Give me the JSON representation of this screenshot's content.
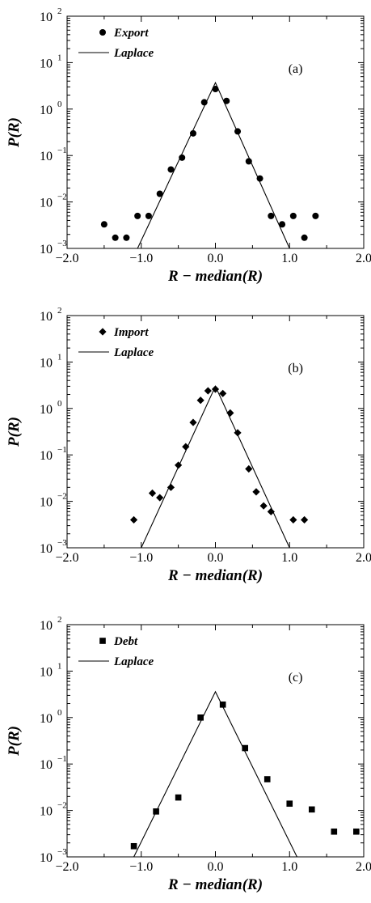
{
  "chart_data": [
    {
      "type": "scatter",
      "panel_label": "(a)",
      "xlabel": "R − median(R)",
      "ylabel": "P(R)",
      "xlim": [
        -2.0,
        2.0
      ],
      "ylim": [
        0.001,
        100
      ],
      "y_scale": "log",
      "x_ticks": [
        "−2.0",
        "−1.0",
        "0.0",
        "1.0",
        "2.0"
      ],
      "y_tick_exponents": [
        "−3",
        "−2",
        "−1",
        "0",
        "1",
        "2"
      ],
      "legend_position": "top-left",
      "series": [
        {
          "name": "Export",
          "marker": "circle",
          "x": [
            -1.5,
            -1.35,
            -1.2,
            -1.05,
            -0.9,
            -0.75,
            -0.6,
            -0.45,
            -0.3,
            -0.15,
            0.0,
            0.15,
            0.3,
            0.45,
            0.6,
            0.75,
            0.9,
            1.05,
            1.2,
            1.35
          ],
          "y": [
            0.0033,
            0.0017,
            0.0017,
            0.005,
            0.005,
            0.015,
            0.05,
            0.09,
            0.3,
            1.4,
            2.7,
            1.5,
            0.33,
            0.075,
            0.032,
            0.005,
            0.0033,
            0.005,
            0.0017,
            0.005
          ]
        },
        {
          "name": "Laplace",
          "marker": "line",
          "x": [
            -1.05,
            0.0,
            1.0
          ],
          "y": [
            0.001,
            3.7,
            0.001
          ]
        }
      ]
    },
    {
      "type": "scatter",
      "panel_label": "(b)",
      "xlabel": "R − median(R)",
      "ylabel": "P(R)",
      "xlim": [
        -2.0,
        2.0
      ],
      "ylim": [
        0.001,
        100
      ],
      "y_scale": "log",
      "x_ticks": [
        "−2.0",
        "−1.0",
        "0.0",
        "1.0",
        "2.0"
      ],
      "y_tick_exponents": [
        "−3",
        "−2",
        "−1",
        "0",
        "1",
        "2"
      ],
      "legend_position": "top-left",
      "series": [
        {
          "name": "Import",
          "marker": "diamond",
          "x": [
            -1.1,
            -0.85,
            -0.75,
            -0.6,
            -0.5,
            -0.4,
            -0.3,
            -0.2,
            -0.1,
            0.0,
            0.1,
            0.2,
            0.3,
            0.45,
            0.55,
            0.65,
            0.75,
            1.05,
            1.2
          ],
          "y": [
            0.004,
            0.015,
            0.012,
            0.02,
            0.06,
            0.15,
            0.5,
            1.5,
            2.4,
            2.6,
            2.1,
            0.8,
            0.3,
            0.05,
            0.016,
            0.008,
            0.006,
            0.004,
            0.004
          ]
        },
        {
          "name": "Laplace",
          "marker": "line",
          "x": [
            -1.0,
            0.0,
            1.0
          ],
          "y": [
            0.001,
            3.0,
            0.001
          ]
        }
      ]
    },
    {
      "type": "scatter",
      "panel_label": "(c)",
      "xlabel": "R − median(R)",
      "ylabel": "P(R)",
      "xlim": [
        -2.0,
        2.0
      ],
      "ylim": [
        0.001,
        100
      ],
      "y_scale": "log",
      "x_ticks": [
        "−2.0",
        "−1.0",
        "0.0",
        "1.0",
        "2.0"
      ],
      "y_tick_exponents": [
        "−3",
        "−2",
        "−1",
        "0",
        "1",
        "2"
      ],
      "legend_position": "top-left",
      "series": [
        {
          "name": "Debt",
          "marker": "square",
          "x": [
            -1.1,
            -0.8,
            -0.5,
            -0.2,
            0.1,
            0.4,
            0.7,
            1.0,
            1.3,
            1.6,
            1.9
          ],
          "y": [
            0.0017,
            0.0095,
            0.019,
            1.0,
            1.9,
            0.22,
            0.047,
            0.014,
            0.0105,
            0.0035,
            0.0035
          ]
        },
        {
          "name": "Laplace",
          "marker": "line",
          "x": [
            -1.1,
            0.0,
            1.1
          ],
          "y": [
            0.001,
            3.6,
            0.001
          ]
        }
      ]
    }
  ]
}
